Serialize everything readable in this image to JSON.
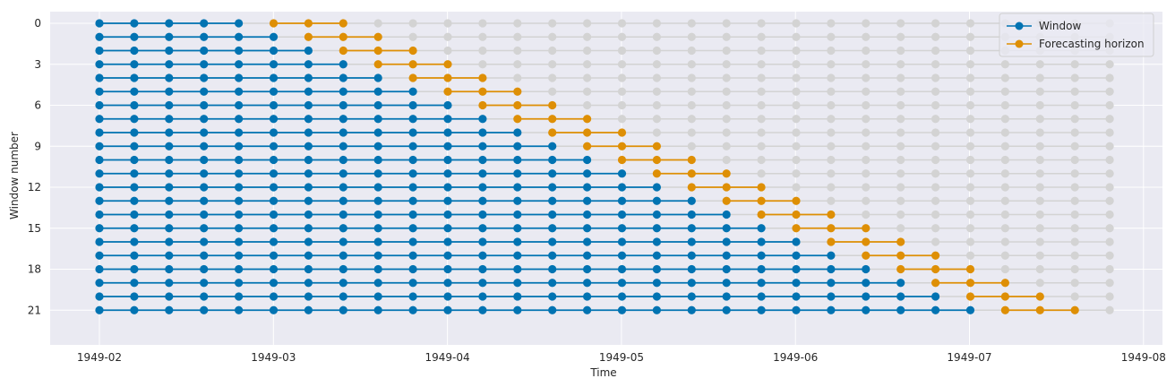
{
  "chart_data": {
    "type": "line",
    "title": "",
    "xlabel": "Time",
    "ylabel": "Window number",
    "x_unit": "month",
    "x_start": "1949-02",
    "n_points": 30,
    "window_start_index": 0,
    "window_initial_length": 5,
    "window_growth_per_step": 1,
    "forecast_horizon": [
      1,
      2,
      3
    ],
    "n_windows": 22,
    "x_ticks": [
      "1949-02",
      "1949-03",
      "1949-04",
      "1949-05",
      "1949-06",
      "1949-07",
      "1949-08"
    ],
    "y_ticks": [
      0,
      3,
      6,
      9,
      12,
      15,
      18,
      21
    ],
    "y_inverted": true,
    "grid": true,
    "legend": {
      "position": "top-right",
      "entries": [
        {
          "name": "Window",
          "color": "#0173b2"
        },
        {
          "name": "Forecasting horizon",
          "color": "#de8f05"
        }
      ]
    },
    "colors": {
      "window": "#0173b2",
      "horizon": "#de8f05",
      "background_points": "#d3d3d3",
      "plot_background": "#eaeaf2",
      "grid": "#ffffff"
    }
  }
}
